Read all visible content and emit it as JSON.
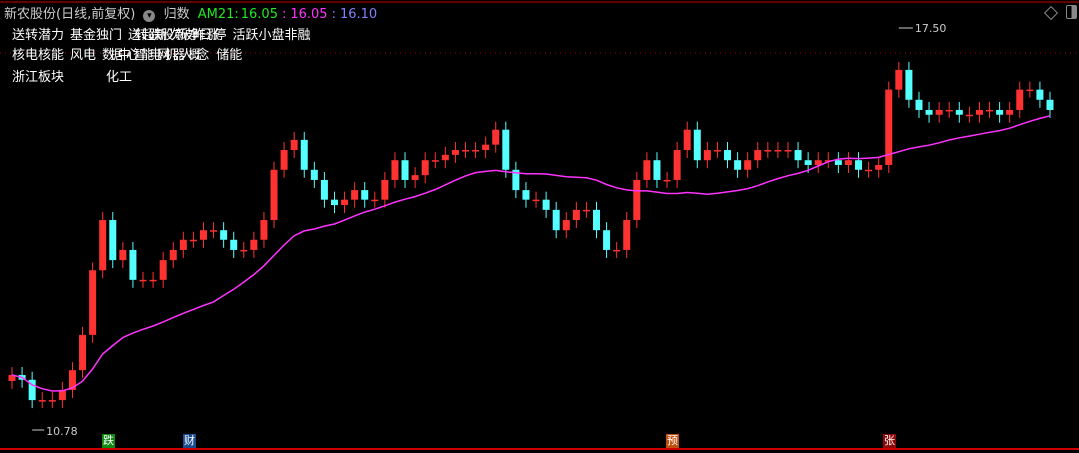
{
  "header": {
    "title": "新农股份(日线,前复权)",
    "indicator_name": "归数",
    "ma_label": "AM21:",
    "ma_value1": "16.05",
    "ma_value2": "16.05",
    "ma_value3": "16.10",
    "colors": {
      "green": "#22e822",
      "magenta": "#ff33ff",
      "blue": "#8080ff"
    }
  },
  "tags": {
    "row1": [
      "送转潜力",
      "基金独门",
      "送转超跌 新股次新 破净 昨日涨停",
      "活跃小盘非融"
    ],
    "row2": [
      "核电核能",
      "风电",
      "数据中心 智能电网 机器人概念",
      "储能"
    ],
    "row3": [
      "浙江板块",
      "化工"
    ]
  },
  "markers": [
    {
      "text": "跌",
      "color": "#118811"
    },
    {
      "text": "财",
      "color": "#1a4b8c"
    },
    {
      "text": "预",
      "color": "#c05010"
    },
    {
      "text": "张",
      "color": "#8b0a0a"
    }
  ],
  "chart_data": {
    "type": "candlestick",
    "ylim": [
      10.78,
      17.5
    ],
    "annotations": {
      "high": "17.50",
      "low": "10.78"
    },
    "ma_period": 21,
    "colors": {
      "up": "#ff3232",
      "down": "#54ffff",
      "ma": "#ff33ff",
      "ma_up_segment": "#22e822"
    },
    "closes": [
      11.7,
      11.62,
      11.28,
      11.28,
      11.28,
      11.45,
      11.78,
      12.37,
      13.45,
      14.29,
      13.62,
      13.79,
      13.29,
      13.29,
      13.29,
      13.62,
      13.79,
      13.96,
      13.96,
      14.12,
      14.12,
      13.96,
      13.79,
      13.79,
      13.96,
      14.29,
      15.13,
      15.46,
      15.63,
      15.13,
      14.96,
      14.63,
      14.54,
      14.63,
      14.79,
      14.63,
      14.63,
      14.96,
      15.29,
      14.96,
      15.04,
      15.29,
      15.29,
      15.38,
      15.46,
      15.46,
      15.46,
      15.55,
      15.8,
      15.13,
      14.79,
      14.63,
      14.63,
      14.46,
      14.12,
      14.29,
      14.46,
      14.46,
      14.12,
      13.79,
      13.79,
      14.29,
      14.96,
      15.29,
      14.96,
      14.96,
      15.46,
      15.8,
      15.29,
      15.46,
      15.46,
      15.29,
      15.13,
      15.29,
      15.46,
      15.46,
      15.46,
      15.46,
      15.29,
      15.21,
      15.29,
      15.29,
      15.21,
      15.29,
      15.13,
      15.13,
      15.21,
      16.47,
      16.8,
      16.3,
      16.13,
      16.05,
      16.13,
      16.13,
      16.05,
      16.05,
      16.13,
      16.13,
      16.05,
      16.13,
      16.47,
      16.47,
      16.3,
      16.13
    ]
  }
}
